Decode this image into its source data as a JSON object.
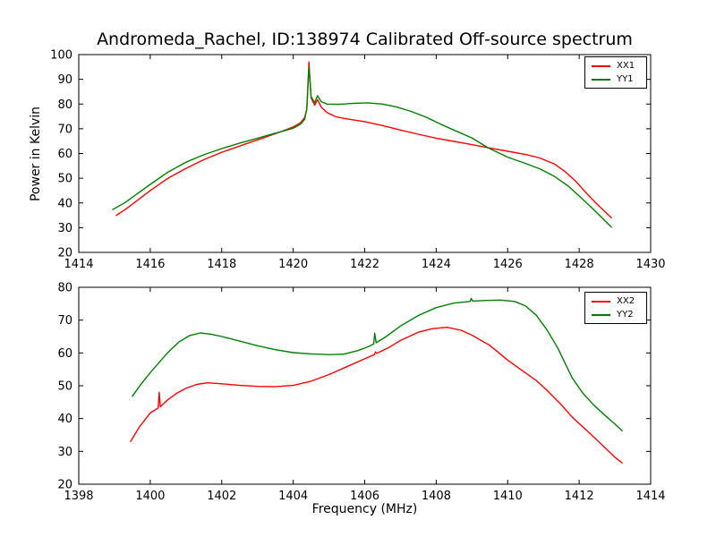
{
  "title": "Andromeda_Rachel, ID:138974 Calibrated Off-source spectrum",
  "colors": {
    "xx_line": "#ff0000",
    "yy_line": "#008000",
    "axis": "#000000",
    "background": "#ffffff"
  },
  "chart_data": [
    {
      "type": "line",
      "title": "Andromeda_Rachel, ID:138974 Calibrated Off-source spectrum",
      "xlabel": "",
      "ylabel": "Power in Kelvin",
      "xlim": [
        1414,
        1430
      ],
      "ylim": [
        20,
        100
      ],
      "xticks": [
        1414,
        1416,
        1418,
        1420,
        1422,
        1424,
        1426,
        1428,
        1430
      ],
      "yticks": [
        20,
        30,
        40,
        50,
        60,
        70,
        80,
        90,
        100
      ],
      "grid": false,
      "legend_position": "upper right",
      "series": [
        {
          "name": "XX1",
          "color": "#ff0000",
          "points": [
            [
              1415.05,
              35
            ],
            [
              1415.3,
              37.3
            ],
            [
              1415.6,
              40.6
            ],
            [
              1416,
              45
            ],
            [
              1416.5,
              50
            ],
            [
              1417,
              54
            ],
            [
              1417.5,
              57.5
            ],
            [
              1418,
              60.5
            ],
            [
              1418.5,
              63
            ],
            [
              1419,
              65.5
            ],
            [
              1419.5,
              68
            ],
            [
              1420,
              70.7
            ],
            [
              1420.2,
              72.4
            ],
            [
              1420.32,
              74.5
            ],
            [
              1420.38,
              78
            ],
            [
              1420.44,
              97
            ],
            [
              1420.5,
              82.5
            ],
            [
              1420.6,
              79.6
            ],
            [
              1420.68,
              81.8
            ],
            [
              1420.78,
              78.8
            ],
            [
              1420.95,
              76.5
            ],
            [
              1421.2,
              74.8
            ],
            [
              1421.5,
              74
            ],
            [
              1422,
              72.9
            ],
            [
              1422.5,
              71.3
            ],
            [
              1423,
              69.5
            ],
            [
              1423.5,
              67.8
            ],
            [
              1424,
              66.2
            ],
            [
              1424.5,
              64.9
            ],
            [
              1425,
              63.6
            ],
            [
              1425.45,
              62.3
            ],
            [
              1426,
              60.9
            ],
            [
              1426.5,
              59.6
            ],
            [
              1426.9,
              58.2
            ],
            [
              1427.3,
              55.8
            ],
            [
              1427.6,
              52.8
            ],
            [
              1427.9,
              48.8
            ],
            [
              1428.2,
              44
            ],
            [
              1428.5,
              39.5
            ],
            [
              1428.9,
              34
            ]
          ]
        },
        {
          "name": "YY1",
          "color": "#008000",
          "points": [
            [
              1414.95,
              37.3
            ],
            [
              1415.3,
              40.2
            ],
            [
              1415.6,
              43.3
            ],
            [
              1416,
              47.5
            ],
            [
              1416.5,
              52.5
            ],
            [
              1417,
              56.5
            ],
            [
              1417.5,
              59.5
            ],
            [
              1418,
              62
            ],
            [
              1418.5,
              64.2
            ],
            [
              1419,
              66.2
            ],
            [
              1419.5,
              68.2
            ],
            [
              1420,
              70.2
            ],
            [
              1420.2,
              71.8
            ],
            [
              1420.32,
              73.8
            ],
            [
              1420.38,
              78
            ],
            [
              1420.44,
              95
            ],
            [
              1420.5,
              83
            ],
            [
              1420.6,
              80.6
            ],
            [
              1420.68,
              83.4
            ],
            [
              1420.78,
              81
            ],
            [
              1420.95,
              80
            ],
            [
              1421.3,
              79.9
            ],
            [
              1421.7,
              80.3
            ],
            [
              1422.1,
              80.5
            ],
            [
              1422.5,
              80
            ],
            [
              1422.9,
              78.8
            ],
            [
              1423.3,
              77
            ],
            [
              1423.7,
              74.8
            ],
            [
              1424.1,
              72
            ],
            [
              1424.6,
              68.8
            ],
            [
              1425,
              66.3
            ],
            [
              1425.45,
              62.3
            ],
            [
              1426,
              58.5
            ],
            [
              1426.5,
              56
            ],
            [
              1426.9,
              53.8
            ],
            [
              1427.3,
              50.8
            ],
            [
              1427.7,
              46.8
            ],
            [
              1428,
              42.8
            ],
            [
              1428.3,
              38.8
            ],
            [
              1428.6,
              34.5
            ],
            [
              1428.9,
              30.2
            ]
          ]
        }
      ]
    },
    {
      "type": "line",
      "title": "",
      "xlabel": "Frequency (MHz)",
      "ylabel": "",
      "xlim": [
        1398,
        1414
      ],
      "ylim": [
        20,
        80
      ],
      "xticks": [
        1398,
        1400,
        1402,
        1404,
        1406,
        1408,
        1410,
        1412,
        1414
      ],
      "yticks": [
        20,
        30,
        40,
        50,
        60,
        70,
        80
      ],
      "grid": false,
      "legend_position": "upper right",
      "series": [
        {
          "name": "XX2",
          "color": "#ff0000",
          "points": [
            [
              1399.45,
              33
            ],
            [
              1399.7,
              37.5
            ],
            [
              1400,
              41.7
            ],
            [
              1400.22,
              43.2
            ],
            [
              1400.25,
              48
            ],
            [
              1400.28,
              43.6
            ],
            [
              1400.5,
              45.8
            ],
            [
              1400.75,
              47.8
            ],
            [
              1401,
              49.2
            ],
            [
              1401.3,
              50.4
            ],
            [
              1401.6,
              50.9
            ],
            [
              1402,
              50.6
            ],
            [
              1402.5,
              50.1
            ],
            [
              1403,
              49.8
            ],
            [
              1403.5,
              49.7
            ],
            [
              1404,
              50.1
            ],
            [
              1404.5,
              51.4
            ],
            [
              1405,
              53.4
            ],
            [
              1405.5,
              55.8
            ],
            [
              1406,
              58.2
            ],
            [
              1406.27,
              59.5
            ],
            [
              1406.3,
              60.3
            ],
            [
              1406.34,
              59.9
            ],
            [
              1406.7,
              61.8
            ],
            [
              1407,
              63.8
            ],
            [
              1407.5,
              66.3
            ],
            [
              1407.9,
              67.4
            ],
            [
              1408.3,
              67.8
            ],
            [
              1408.7,
              66.9
            ],
            [
              1409,
              65.4
            ],
            [
              1409.5,
              62.3
            ],
            [
              1410,
              57.8
            ],
            [
              1410.5,
              53.9
            ],
            [
              1410.8,
              51.6
            ],
            [
              1411.1,
              48.6
            ],
            [
              1411.5,
              44.2
            ],
            [
              1411.8,
              40.5
            ],
            [
              1412.2,
              36.5
            ],
            [
              1412.6,
              32.4
            ],
            [
              1413,
              28.2
            ],
            [
              1413.2,
              26.5
            ]
          ]
        },
        {
          "name": "YY2",
          "color": "#008000",
          "points": [
            [
              1399.5,
              46.8
            ],
            [
              1399.75,
              50.6
            ],
            [
              1400,
              54
            ],
            [
              1400.5,
              60.2
            ],
            [
              1400.8,
              63.3
            ],
            [
              1401.1,
              65.3
            ],
            [
              1401.4,
              66.1
            ],
            [
              1401.7,
              65.7
            ],
            [
              1402,
              65
            ],
            [
              1402.5,
              63.6
            ],
            [
              1403,
              62.2
            ],
            [
              1403.5,
              61
            ],
            [
              1404,
              60.1
            ],
            [
              1404.5,
              59.7
            ],
            [
              1405,
              59.5
            ],
            [
              1405.4,
              59.6
            ],
            [
              1405.8,
              60.7
            ],
            [
              1406.1,
              61.9
            ],
            [
              1406.25,
              62.7
            ],
            [
              1406.28,
              66
            ],
            [
              1406.32,
              63.1
            ],
            [
              1406.6,
              65
            ],
            [
              1407,
              68.2
            ],
            [
              1407.5,
              71.4
            ],
            [
              1408,
              73.8
            ],
            [
              1408.5,
              75.2
            ],
            [
              1408.95,
              75.7
            ],
            [
              1408.98,
              76.6
            ],
            [
              1409.02,
              75.8
            ],
            [
              1409.4,
              76
            ],
            [
              1409.8,
              76.1
            ],
            [
              1410.2,
              75.7
            ],
            [
              1410.5,
              74.3
            ],
            [
              1410.8,
              71.5
            ],
            [
              1411.1,
              67
            ],
            [
              1411.4,
              61.5
            ],
            [
              1411.8,
              52.5
            ],
            [
              1412.1,
              47.8
            ],
            [
              1412.4,
              44.2
            ],
            [
              1412.7,
              41.2
            ],
            [
              1413,
              38.3
            ],
            [
              1413.2,
              36.3
            ]
          ]
        }
      ]
    }
  ]
}
